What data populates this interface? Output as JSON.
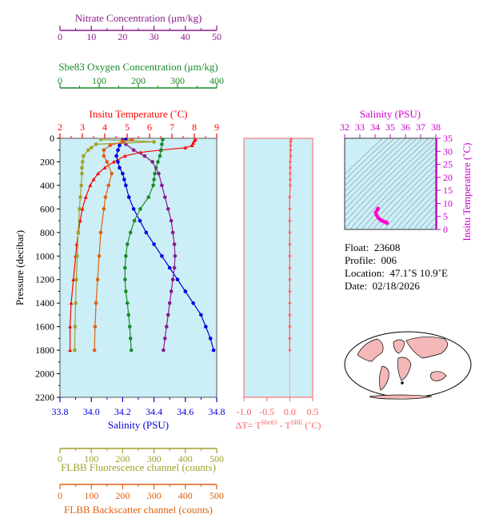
{
  "float_info": {
    "float_label": "Float:",
    "float_value": "23608",
    "profile_label": "Profile:",
    "profile_value": "006",
    "location_label": "Location:",
    "location_value": "47.1˚S  10.9˚E",
    "date_label": "Date:",
    "date_value": "02/18/2026"
  },
  "colors": {
    "nitrate": "#8b1a8b",
    "oxygen": "#1a8b2a",
    "temperature": "#ff0000",
    "salinity": "#0000dd",
    "fluorescence": "#a0a028",
    "backscatter": "#e06010",
    "delta": "#ff6060",
    "ts": "#ff00cc",
    "ts_axis": "#cc00cc",
    "panel_bg": "#cceef6",
    "land": "#f4b8b8",
    "ocean": "#ffffff"
  },
  "icons": [
    "world-map-icon"
  ],
  "chart_data": [
    {
      "type": "line",
      "name": "profile-panel",
      "ylabel": "Pressure (decibar)",
      "ylim": [
        2200,
        0
      ],
      "yticks": [
        0,
        200,
        400,
        600,
        800,
        1000,
        1200,
        1400,
        1600,
        1800,
        2000,
        2200
      ],
      "axes": {
        "nitrate": {
          "label": "Nitrate Concentration (μm/kg)",
          "lim": [
            0,
            50
          ],
          "ticks": [
            0,
            10,
            20,
            30,
            40,
            50
          ]
        },
        "oxygen": {
          "label": "Sbe83 Oxygen Concentration (μm/kg)",
          "lim": [
            0,
            400
          ],
          "ticks": [
            0,
            100,
            200,
            300,
            400
          ]
        },
        "temperature": {
          "label": "Insitu Temperature (˚C)",
          "lim": [
            2,
            9
          ],
          "ticks": [
            2,
            3,
            4,
            5,
            6,
            7,
            8,
            9
          ]
        },
        "salinity": {
          "label": "Salinity (PSU)",
          "lim": [
            33.8,
            34.8
          ],
          "ticks": [
            "33.8",
            "34.0",
            "34.2",
            "34.4",
            "34.6",
            "34.8"
          ]
        },
        "fluorescence": {
          "label": "FLBB Fluorescence channel (counts)",
          "lim": [
            0,
            500
          ],
          "ticks": [
            0,
            100,
            200,
            300,
            400,
            500
          ]
        },
        "backscatter": {
          "label": "FLBB Backscatter channel (counts)",
          "lim": [
            0,
            500
          ],
          "ticks": [
            0,
            100,
            200,
            300,
            400,
            500
          ]
        }
      },
      "series": [
        {
          "key": "temperature",
          "pressure": [
            10,
            20,
            40,
            60,
            80,
            100,
            120,
            150,
            200,
            250,
            300,
            350,
            400,
            500,
            600,
            700,
            800,
            900,
            1000,
            1200,
            1400,
            1600,
            1800
          ],
          "values": [
            8.05,
            8.0,
            7.95,
            7.9,
            7.6,
            6.5,
            5.6,
            4.9,
            4.4,
            4.0,
            3.7,
            3.5,
            3.35,
            3.15,
            3.0,
            2.9,
            2.82,
            2.75,
            2.7,
            2.6,
            2.5,
            2.45,
            2.45
          ]
        },
        {
          "key": "salinity",
          "pressure": [
            10,
            30,
            60,
            100,
            150,
            200,
            250,
            300,
            350,
            400,
            500,
            600,
            700,
            800,
            900,
            1000,
            1100,
            1200,
            1300,
            1400,
            1500,
            1600,
            1700,
            1800
          ],
          "values": [
            34.22,
            34.2,
            34.18,
            34.17,
            34.16,
            34.17,
            34.18,
            34.2,
            34.21,
            34.22,
            34.24,
            34.27,
            34.31,
            34.35,
            34.4,
            34.45,
            34.5,
            34.55,
            34.6,
            34.65,
            34.7,
            34.73,
            34.76,
            34.78
          ]
        },
        {
          "key": "oxygen",
          "pressure": [
            10,
            50,
            100,
            150,
            200,
            250,
            300,
            350,
            400,
            500,
            600,
            700,
            800,
            900,
            1000,
            1100,
            1200,
            1300,
            1400,
            1500,
            1600,
            1700,
            1800
          ],
          "values": [
            262,
            260,
            258,
            255,
            250,
            245,
            242,
            240,
            238,
            226,
            205,
            190,
            180,
            172,
            168,
            166,
            166,
            168,
            172,
            175,
            178,
            180,
            182
          ]
        },
        {
          "key": "nitrate",
          "pressure": [
            10,
            50,
            100,
            150,
            200,
            300,
            400,
            500,
            600,
            700,
            800,
            900,
            1000,
            1100,
            1200,
            1300,
            1400,
            1500,
            1600,
            1700,
            1800
          ],
          "values": [
            20,
            21,
            23.5,
            27,
            29.5,
            31.5,
            32.5,
            33.5,
            34.5,
            35.5,
            36,
            36.5,
            36.7,
            36.5,
            36,
            35.5,
            35,
            34.5,
            34,
            33.5,
            33
          ]
        },
        {
          "key": "fluorescence",
          "pressure": [
            10,
            30,
            50,
            80,
            100,
            150,
            200,
            250,
            300,
            400,
            500,
            600,
            800,
            1000,
            1200,
            1400,
            1600,
            1800
          ],
          "values": [
            130,
            300,
            115,
            100,
            90,
            75,
            72,
            70,
            70,
            68,
            65,
            62,
            58,
            55,
            52,
            50,
            48,
            47
          ]
        },
        {
          "key": "backscatter",
          "pressure": [
            10,
            30,
            60,
            100,
            150,
            200,
            300,
            400,
            500,
            600,
            800,
            1000,
            1200,
            1400,
            1600,
            1800
          ],
          "values": [
            230,
            200,
            160,
            140,
            140,
            150,
            165,
            155,
            145,
            140,
            130,
            125,
            120,
            115,
            112,
            110
          ]
        }
      ]
    },
    {
      "type": "line",
      "name": "delta-t-panel",
      "xlabel_main": "ΔT= T",
      "xlabel_sup1": "Sbe83",
      "xlabel_mid": " - T",
      "xlabel_sup2": "SBE",
      "xlabel_unit": " (˚C)",
      "xlim": [
        -1.0,
        0.5
      ],
      "xticks": [
        "-1.0",
        "-0.5",
        "0.0",
        "0.5"
      ],
      "ylim": [
        2200,
        0
      ],
      "pressure": [
        10,
        30,
        60,
        100,
        150,
        200,
        250,
        300,
        350,
        400,
        500,
        600,
        700,
        800,
        900,
        1000,
        1100,
        1200,
        1300,
        1400,
        1500,
        1600,
        1700,
        1800
      ],
      "values": [
        0.03,
        0.02,
        0.02,
        0.02,
        0.02,
        0.01,
        0.01,
        0.01,
        0.01,
        0.01,
        0.0,
        0.0,
        0.0,
        0.0,
        0.0,
        0.0,
        0.0,
        0.0,
        0.0,
        0.0,
        0.0,
        0.0,
        0.0,
        0.0
      ]
    },
    {
      "type": "scatter",
      "name": "ts-panel",
      "xlabel": "Salinity (PSU)",
      "ylabel": "Insitu Temperature (˚C)",
      "xlim": [
        32,
        38
      ],
      "ylim": [
        0,
        35
      ],
      "xticks": [
        32,
        33,
        34,
        35,
        36,
        37,
        38
      ],
      "yticks": [
        0,
        5,
        10,
        15,
        20,
        25,
        30,
        35
      ],
      "salinity": [
        34.2,
        34.15,
        34.05,
        34.1,
        34.2,
        34.3,
        34.4,
        34.5,
        34.6,
        34.7,
        34.75,
        34.78
      ],
      "temperature": [
        8.0,
        7.5,
        6.5,
        5.5,
        4.5,
        4.0,
        3.5,
        3.2,
        3.0,
        2.8,
        2.6,
        2.45
      ]
    }
  ]
}
